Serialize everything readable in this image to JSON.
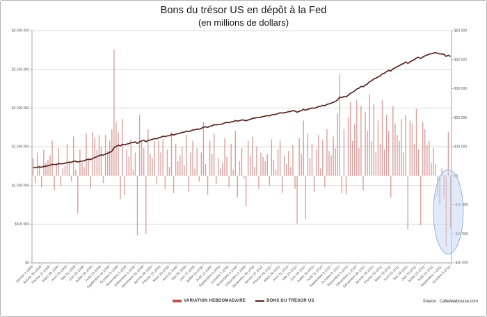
{
  "title": "Bons du trésor US en dépôt à la Fed",
  "subtitle": "(en millions de dollars)",
  "source": "Source : Cafedelabourse.com",
  "colors": {
    "bar": "#c0504d",
    "bar_opacity": 0.55,
    "line": "#552220",
    "grid": "#d9d9d9",
    "axis": "#a6a6a6",
    "axis_text": "#595959",
    "highlight_fill": "#c5d5ef",
    "highlight_fill_opacity": 0.5,
    "highlight_stroke": "#95b3d7"
  },
  "chart_data": {
    "type": "bar",
    "subtype": "bar+line-dual-axis",
    "grid": "horizontal-only",
    "legend_position": "bottom-center",
    "x_label_every": 4,
    "x_tick_labels": [
      "Janvier 2 2008",
      "Janvier 30 2008",
      "Février 27 2008",
      "Mars 26 2008",
      "Avril 23 2008",
      "Mai 21 2008",
      "Juin 18 2008",
      "Juillet 16 2008",
      "Août 13 2008",
      "Septembre 10 2008",
      "Octobre 8 2008",
      "Novembre 5 2008",
      "Décembre 3 2008",
      "Décembre 31 2008",
      "Janvier 28 2009",
      "Février 25 2009",
      "Mars 25 2009",
      "Avril 22 2009",
      "Mai 20 2009",
      "Juin 17 2009",
      "Juillet 15 2009",
      "Août 12 2009",
      "Septembre 9 2009",
      "Octobre 7 2009",
      "Novembre 4 2009",
      "Décembre 2 2009",
      "Décembre 30 2009",
      "Janvier 27 2010",
      "Février 24 2010",
      "Mars 24 2010",
      "Avril 21 2010",
      "Mai 19 2010",
      "Juin 16 2010",
      "Juillet 14 2010",
      "Août 11 2010",
      "Septembre 8 2010",
      "Octobre 6 2010",
      "Novembre 3 2010",
      "Décembre 1 2010",
      "Décembre 29 2010",
      "Janvier 26 2011",
      "Février 23 2011",
      "Mars 23 2011",
      "Avril 20 2011",
      "Mai 18 2011",
      "Juin 15 2011",
      "Juillet 13 2011",
      "Août 10 2011",
      "Septembre 7 2011",
      "Octobre 5 2011"
    ],
    "left_axis": {
      "min": 0,
      "max": 3000000,
      "step": 500000,
      "tick_labels": [
        "$3 000 000",
        "$2 500 000",
        "$2 000 000",
        "$1 500 000",
        "$1 000 000",
        "$500 000",
        "$0"
      ]
    },
    "right_axis": {
      "min": -30000,
      "max": 50000,
      "step": 10000,
      "tick_labels": [
        "$50 000",
        "$40 000",
        "$30 000",
        "$20 000",
        "$10 000",
        "$0",
        "-$10 000",
        "-$20 000",
        "-$30 000"
      ]
    },
    "series": [
      {
        "name": "VARIATION HEBDOMADAIRE",
        "type": "bar",
        "axis": "right",
        "values": [
          6000,
          -2500,
          8000,
          3500,
          -4000,
          9000,
          4500,
          5500,
          7000,
          12000,
          -5000,
          4000,
          9500,
          -3500,
          2500,
          3500,
          11000,
          5000,
          -2000,
          13500,
          2000,
          -13000,
          9000,
          4500,
          3000,
          14500,
          6000,
          -4500,
          15000,
          13000,
          9000,
          14000,
          10000,
          -2500,
          14000,
          8500,
          12000,
          16000,
          43500,
          18500,
          15000,
          -8000,
          19500,
          -6500,
          9000,
          6500,
          12500,
          2000,
          8000,
          -20500,
          21000,
          11500,
          9500,
          -20000,
          16000,
          7500,
          6000,
          12000,
          -3000,
          12000,
          8000,
          12500,
          -4500,
          9000,
          3000,
          15000,
          -6000,
          11000,
          5000,
          7000,
          10000,
          3500,
          14000,
          -5500,
          8000,
          12000,
          2500,
          9500,
          -2000,
          8000,
          18500,
          4000,
          -6500,
          12000,
          7500,
          14500,
          -3000,
          6000,
          2500,
          4500,
          13000,
          6500,
          -4000,
          11000,
          2000,
          15500,
          -7500,
          5000,
          9500,
          -1000,
          -10500,
          12000,
          7000,
          13500,
          3000,
          10000,
          -4500,
          8000,
          6500,
          5000,
          7500,
          -3500,
          12500,
          5500,
          2000,
          9000,
          12000,
          -6000,
          7000,
          4000,
          8500,
          3000,
          10500,
          -4500,
          -16500,
          13000,
          7500,
          19000,
          -15000,
          14500,
          6000,
          11000,
          -5500,
          9000,
          14000,
          2500,
          12500,
          -4000,
          16000,
          8500,
          7000,
          13500,
          9500,
          21500,
          35000,
          -6000,
          16000,
          -6500,
          20000,
          25500,
          12000,
          18000,
          26000,
          9500,
          24000,
          -5000,
          22000,
          15500,
          28000,
          12000,
          24500,
          8000,
          19000,
          11000,
          26000,
          9000,
          21000,
          15500,
          -7500,
          24000,
          18000,
          14000,
          12000,
          19500,
          8000,
          21000,
          -18500,
          19000,
          18000,
          11000,
          23000,
          9000,
          -17000,
          18500,
          16000,
          10500,
          12000,
          4500,
          9500,
          4000,
          -7000,
          -10000,
          2500,
          -8000,
          -24500,
          15000,
          -18000
        ]
      },
      {
        "name": "BONS DU TRÉSOR US",
        "type": "line",
        "axis": "left",
        "derivation": "cumulative-sum-of-weekly-variation",
        "start_value": 1224000,
        "end_value": 2664000
      }
    ],
    "annotations": [
      {
        "type": "ellipse",
        "note": "highlight of recent negative weekly variations (Sept-Oct 2011)",
        "axis": "right",
        "week_from": 188,
        "week_to": 202,
        "value_from": -27000,
        "value_to": 2100
      }
    ]
  }
}
